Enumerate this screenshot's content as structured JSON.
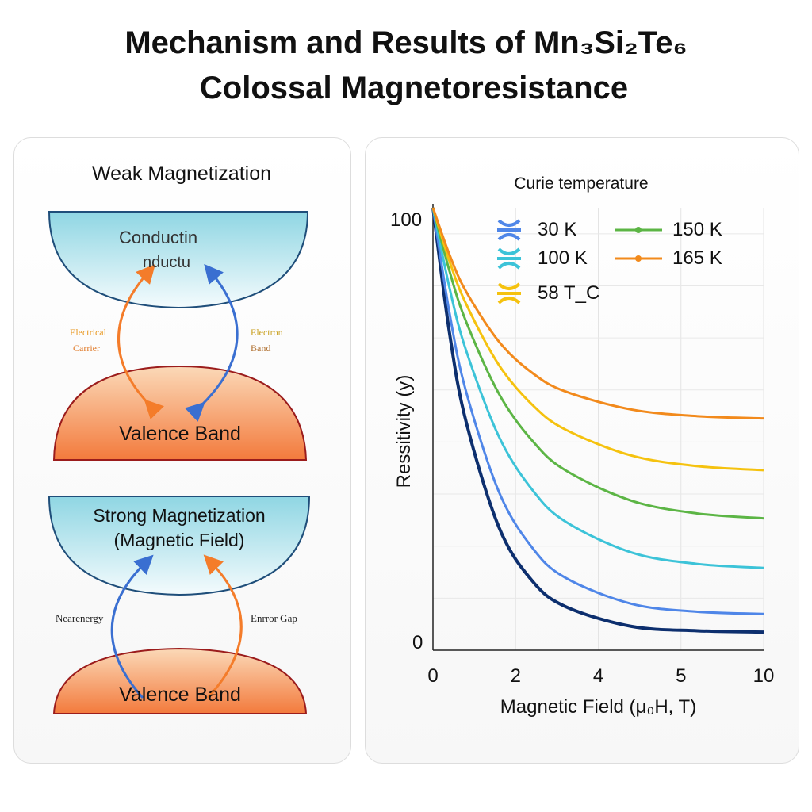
{
  "title": {
    "line1": "Mechanism and Results of Mn₃Si₂Te₆",
    "line2": "Colossal Magnetoresistance"
  },
  "left_panel": {
    "weak": {
      "title": "Weak Magnetization",
      "conduction_label_1": "Conductin",
      "conduction_label_2": "nductu",
      "valence_label": "Valence Band",
      "left_arrow_label_1": "Electrical",
      "left_arrow_label_2": "Carrier",
      "right_arrow_label_1": "Electron",
      "right_arrow_label_2": "Band"
    },
    "strong": {
      "title_1": "Strong Magnetization",
      "title_2": "(Magnetic Field)",
      "valence_label": "Valence Band",
      "left_arrow_label": "Nearenergy",
      "right_arrow_label": "Enrror Gap"
    }
  },
  "colors": {
    "conduction": "#9fdbe6",
    "valence": "#f4874e",
    "outline_blue": "#1f4e7a",
    "outline_red": "#9b1c1c",
    "orange_arrow": "#f47c2a",
    "blue_arrow": "#3a6fd1"
  },
  "chart_data": {
    "type": "line",
    "title": "Curie temperature",
    "xlabel": "Magnetic Field (μ₀H, T)",
    "ylabel": "Ressitivity (y)",
    "xlim": [
      0,
      10
    ],
    "ylim": [
      0,
      100
    ],
    "x_tick_labels": [
      "0",
      "2",
      "4",
      "5",
      "10"
    ],
    "y_tick_labels": [
      "0",
      "100"
    ],
    "grid": true,
    "legend_placement": "top",
    "x": [
      0,
      0.5,
      1,
      2,
      3,
      4,
      6,
      8,
      10
    ],
    "series": [
      {
        "name": "",
        "color": "#0d2f6e",
        "values": [
          100,
          71.7,
          51.7,
          27.7,
          15.7,
          9.9,
          5.4,
          4.4,
          4.1
        ]
      },
      {
        "name": "30 K",
        "color": "#4f86e8",
        "values": [
          100,
          76.2,
          58.5,
          35.7,
          23.2,
          16.4,
          10.5,
          8.7,
          8.2
        ]
      },
      {
        "name": "100 K",
        "color": "#3cc3d8",
        "values": [
          100,
          81.9,
          67.8,
          48.2,
          36.3,
          29.1,
          22.1,
          19.5,
          18.6
        ]
      },
      {
        "name": "150 K",
        "color": "#5cb545",
        "values": [
          100,
          85.7,
          74.3,
          57.9,
          47.4,
          40.7,
          33.8,
          30.9,
          29.8
        ]
      },
      {
        "name": "58 T_C",
        "color": "#f5c20f",
        "values": [
          100,
          87.9,
          78.3,
          64.4,
          55.5,
          49.9,
          44.0,
          41.6,
          40.7
        ]
      },
      {
        "name": "165 K",
        "color": "#f28a1c",
        "values": [
          100,
          89.4,
          81.1,
          69.7,
          62.7,
          58.5,
          54.4,
          52.9,
          52.4
        ]
      }
    ]
  }
}
